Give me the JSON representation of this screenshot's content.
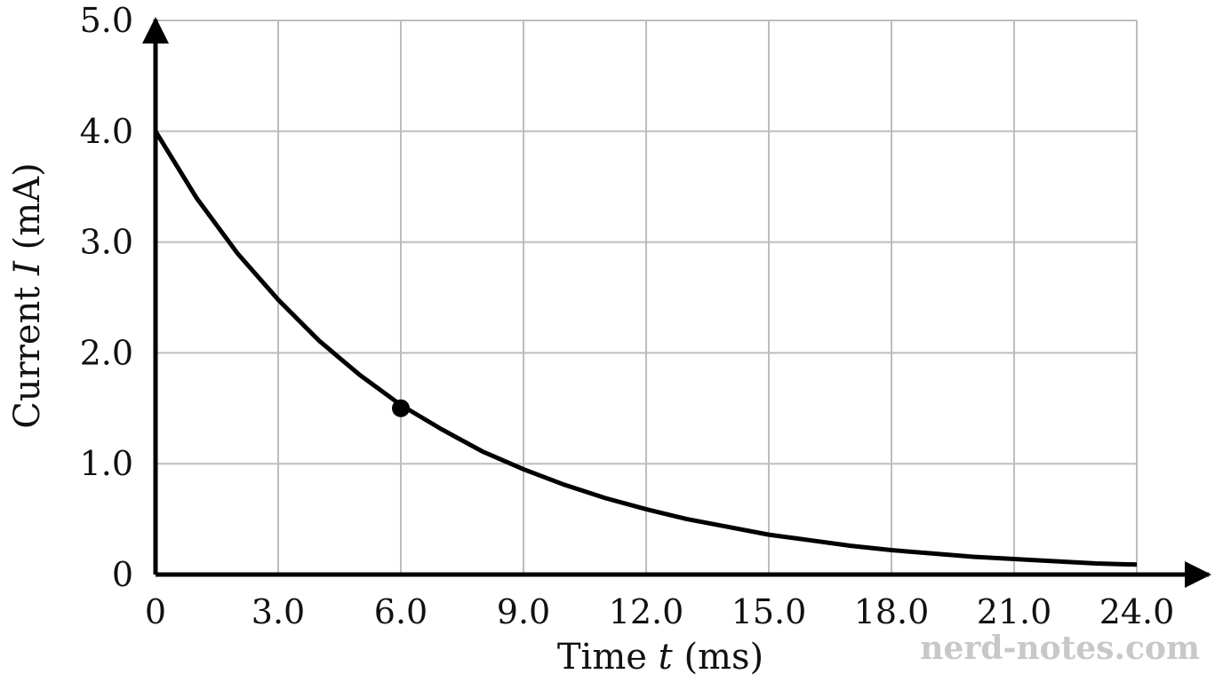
{
  "chart_data": {
    "type": "line",
    "title": "",
    "xlabel": {
      "prefix": "Time ",
      "var": "t",
      "suffix": " (ms)"
    },
    "ylabel": {
      "prefix": "Current ",
      "var": "I",
      "suffix": " (mA)"
    },
    "xlim": [
      0,
      24
    ],
    "ylim": [
      0,
      5
    ],
    "x_ticks": [
      0,
      3,
      6,
      9,
      12,
      15,
      18,
      21,
      24
    ],
    "x_tick_labels": [
      "0",
      "3.0",
      "6.0",
      "9.0",
      "12.0",
      "15.0",
      "18.0",
      "21.0",
      "24.0"
    ],
    "y_ticks": [
      0,
      1,
      2,
      3,
      4,
      5
    ],
    "y_tick_labels": [
      "0",
      "1.0",
      "2.0",
      "3.0",
      "4.0",
      "5.0"
    ],
    "grid": true,
    "series": [
      {
        "x": [
          0,
          1,
          2,
          3,
          4,
          5,
          6,
          7,
          8,
          9,
          10,
          11,
          12,
          13,
          14,
          15,
          16,
          17,
          18,
          19,
          20,
          21,
          22,
          23,
          24
        ],
        "values": [
          4.0,
          3.4,
          2.9,
          2.48,
          2.11,
          1.8,
          1.53,
          1.31,
          1.11,
          0.95,
          0.81,
          0.69,
          0.59,
          0.5,
          0.43,
          0.36,
          0.31,
          0.26,
          0.22,
          0.19,
          0.16,
          0.14,
          0.12,
          0.1,
          0.09
        ]
      }
    ],
    "marked_point": {
      "x": 6,
      "y": 1.5
    }
  },
  "watermark": "nerd-notes.com"
}
